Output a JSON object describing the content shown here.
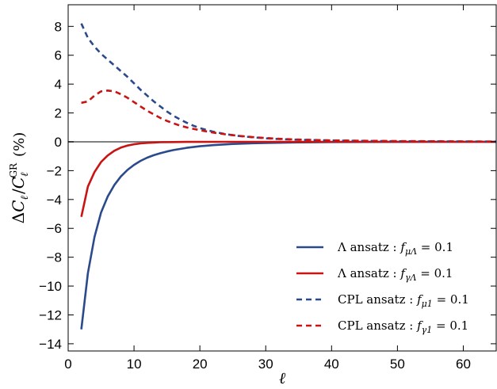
{
  "chart_data": {
    "type": "line",
    "title": "",
    "xlabel": "ℓ",
    "ylabel": "ΔCℓ / CℓGR  (%)",
    "ylabel_parts": {
      "delta": "Δ",
      "c1": "C",
      "sub1": "ℓ",
      "slash": "/",
      "c2": "C",
      "sub2": "ℓ",
      "sup2": "GR",
      "unit": "(%)"
    },
    "xlim": [
      0,
      65
    ],
    "ylim": [
      -14.5,
      9.5
    ],
    "xticks": [
      0,
      10,
      20,
      30,
      40,
      50,
      60
    ],
    "xtick_labels": [
      "0",
      "10",
      "20",
      "30",
      "40",
      "50",
      "60"
    ],
    "yticks": [
      8,
      6,
      4,
      2,
      0,
      -2,
      -4,
      -6,
      -8,
      -10,
      -12,
      -14
    ],
    "ytick_labels": [
      "8",
      "6",
      "4",
      "2",
      "0",
      "−2",
      "−4",
      "−6",
      "−8",
      "−10",
      "−12",
      "−14"
    ],
    "grid": false,
    "legend_position": "lower-right",
    "reference_line": {
      "y": 0,
      "color": "#808080"
    },
    "series": [
      {
        "name": "Λ ansatz : fμΛ = 0.1",
        "legend": {
          "prefix": "Λ ansatz : ",
          "f": "f",
          "sub": "μΛ",
          "suffix": " = 0.1"
        },
        "color": "#2b4a8b",
        "dash": "solid",
        "x": [
          2,
          3,
          4,
          5,
          6,
          7,
          8,
          9,
          10,
          11,
          12,
          13,
          14,
          15,
          16,
          18,
          20,
          22,
          25,
          28,
          30,
          35,
          40,
          45,
          50,
          55,
          60,
          65
        ],
        "y": [
          -13.0,
          -9.1,
          -6.6,
          -4.9,
          -3.8,
          -3.0,
          -2.4,
          -1.95,
          -1.6,
          -1.32,
          -1.1,
          -0.93,
          -0.79,
          -0.67,
          -0.57,
          -0.42,
          -0.31,
          -0.23,
          -0.15,
          -0.1,
          -0.08,
          -0.04,
          -0.02,
          -0.01,
          -0.005,
          -0.003,
          -0.001,
          0.0
        ]
      },
      {
        "name": "Λ ansatz : fγΛ = 0.1",
        "legend": {
          "prefix": "Λ ansatz : ",
          "f": "f",
          "sub": "γΛ",
          "suffix": " = 0.1"
        },
        "color": "#c91414",
        "dash": "solid",
        "x": [
          2,
          3,
          4,
          5,
          6,
          7,
          8,
          9,
          10,
          11,
          12,
          13,
          14,
          16,
          18,
          20,
          25,
          30,
          40,
          50,
          65
        ],
        "y": [
          -5.2,
          -3.1,
          -2.1,
          -1.4,
          -0.95,
          -0.62,
          -0.4,
          -0.26,
          -0.17,
          -0.11,
          -0.07,
          -0.05,
          -0.03,
          -0.015,
          -0.008,
          -0.004,
          -0.001,
          0.0,
          0.0,
          0.0,
          0.0
        ]
      },
      {
        "name": "CPL ansatz : fμ1 = 0.1",
        "legend": {
          "prefix": "CPL ansatz : ",
          "f": "f",
          "sub": "μ1",
          "suffix": " = 0.1"
        },
        "color": "#2b4a8b",
        "dash": "dashed",
        "x": [
          2,
          3,
          4,
          5,
          6,
          7,
          8,
          9,
          10,
          11,
          12,
          13,
          14,
          15,
          16,
          17,
          18,
          19,
          20,
          22,
          24,
          26,
          28,
          30,
          32,
          35,
          40,
          45,
          50,
          55,
          60,
          65
        ],
        "y": [
          8.2,
          7.2,
          6.6,
          6.1,
          5.7,
          5.3,
          4.9,
          4.5,
          4.05,
          3.6,
          3.2,
          2.8,
          2.45,
          2.1,
          1.8,
          1.55,
          1.32,
          1.12,
          0.95,
          0.7,
          0.52,
          0.4,
          0.31,
          0.24,
          0.19,
          0.14,
          0.09,
          0.06,
          0.04,
          0.03,
          0.02,
          0.015
        ]
      },
      {
        "name": "CPL ansatz : fγ1 = 0.1",
        "legend": {
          "prefix": "CPL ansatz : ",
          "f": "f",
          "sub": "γ1",
          "suffix": " = 0.1"
        },
        "color": "#c91414",
        "dash": "dashed",
        "x": [
          2,
          3,
          4,
          5,
          6,
          7,
          8,
          9,
          10,
          11,
          12,
          13,
          14,
          15,
          16,
          17,
          18,
          19,
          20,
          22,
          24,
          26,
          28,
          30,
          32,
          35,
          40,
          45,
          50,
          55,
          60,
          65
        ],
        "y": [
          2.7,
          2.8,
          3.2,
          3.5,
          3.55,
          3.5,
          3.3,
          3.05,
          2.75,
          2.45,
          2.15,
          1.9,
          1.65,
          1.45,
          1.28,
          1.12,
          1.0,
          0.9,
          0.8,
          0.64,
          0.51,
          0.41,
          0.33,
          0.26,
          0.21,
          0.15,
          0.1,
          0.07,
          0.05,
          0.035,
          0.025,
          0.018
        ]
      }
    ]
  }
}
